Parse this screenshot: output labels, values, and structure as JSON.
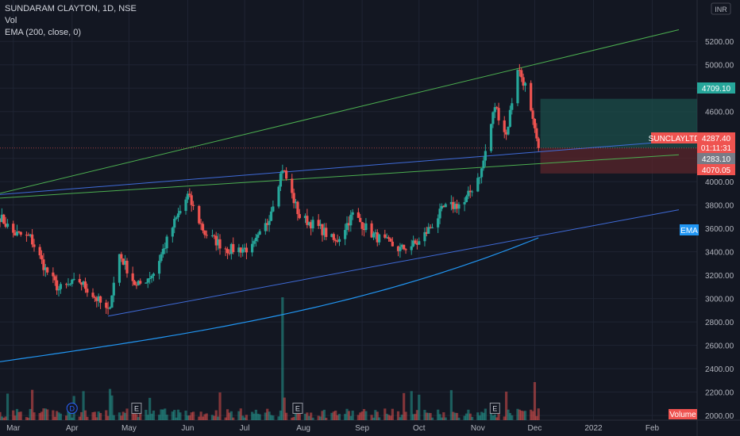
{
  "legend": {
    "symbol": "SUNDARAM CLAYTON, 1D, NSE",
    "volume": "Vol",
    "ema": "EMA (200, close, 0)"
  },
  "currency": "INR",
  "chart_data": {
    "type": "candlestick",
    "symbol": "SUNDARAM CLAYTON",
    "interval": "1D",
    "exchange": "NSE",
    "ylim": [
      1960,
      5500
    ],
    "y_ticks": [
      2000,
      2200,
      2400,
      2600,
      2800,
      3000,
      3200,
      3400,
      3600,
      3800,
      4000,
      4200,
      4400,
      4600,
      4800,
      5000,
      5200
    ],
    "y_tick_labels": [
      "2000.00",
      "2200.00",
      "2400.00",
      "2600.00",
      "2800.00",
      "3000.00",
      "3200.00",
      "3400.00",
      "3600.00",
      "3800.00",
      "4000.00",
      "4200.00",
      "4400.00",
      "4600.00",
      "4800.00",
      "5000.00",
      "5200.00"
    ],
    "x_ticks": [
      "Mar",
      "Apr",
      "May",
      "Jun",
      "Jul",
      "Aug",
      "Sep",
      "Oct",
      "Nov",
      "Dec",
      "2022",
      "Feb"
    ],
    "price_anchors": [
      [
        "2021-02-22",
        3700
      ],
      [
        "2021-03-01",
        3560
      ],
      [
        "2021-03-10",
        3520
      ],
      [
        "2021-03-18",
        3250
      ],
      [
        "2021-03-25",
        3080
      ],
      [
        "2021-04-05",
        3150
      ],
      [
        "2021-04-15",
        2980
      ],
      [
        "2021-04-20",
        2880
      ],
      [
        "2021-04-26",
        3380
      ],
      [
        "2021-05-05",
        3100
      ],
      [
        "2021-05-14",
        3220
      ],
      [
        "2021-05-25",
        3650
      ],
      [
        "2021-06-01",
        3880
      ],
      [
        "2021-06-10",
        3560
      ],
      [
        "2021-06-22",
        3420
      ],
      [
        "2021-07-05",
        3430
      ],
      [
        "2021-07-13",
        3650
      ],
      [
        "2021-07-21",
        4120
      ],
      [
        "2021-07-30",
        3700
      ],
      [
        "2021-08-10",
        3600
      ],
      [
        "2021-08-18",
        3480
      ],
      [
        "2021-08-27",
        3720
      ],
      [
        "2021-09-07",
        3540
      ],
      [
        "2021-09-21",
        3420
      ],
      [
        "2021-10-01",
        3480
      ],
      [
        "2021-10-14",
        3770
      ],
      [
        "2021-10-25",
        3820
      ],
      [
        "2021-11-03",
        4100
      ],
      [
        "2021-11-10",
        4650
      ],
      [
        "2021-11-16",
        4400
      ],
      [
        "2021-11-22",
        4980
      ],
      [
        "2021-11-26",
        4820
      ],
      [
        "2021-12-01",
        4420
      ],
      [
        "2021-12-03",
        4287.4
      ]
    ],
    "ema": {
      "name": "EMA (200, close, 0)",
      "start": 2460,
      "end": 3520
    },
    "volume_highlights": [
      {
        "date": "2021-07-21",
        "bar": "spike"
      },
      {
        "date": "2021-12-01",
        "bar": "spike"
      }
    ],
    "trendlines": [
      {
        "color": "#4caf50",
        "from": [
          "2021-02-22",
          3900
        ],
        "to": [
          "2022-02-15",
          5300
        ]
      },
      {
        "color": "#4caf50",
        "from": [
          "2021-02-22",
          3860
        ],
        "to": [
          "2022-02-15",
          4230
        ]
      },
      {
        "color": "#3f6bd8",
        "from": [
          "2021-02-22",
          3890
        ],
        "to": [
          "2022-02-15",
          4350
        ]
      },
      {
        "color": "#3f6bd8",
        "from": [
          "2021-04-20",
          2850
        ],
        "to": [
          "2022-02-15",
          3760
        ]
      }
    ],
    "position": {
      "entry": 4287.4,
      "target": 4709.1,
      "stop": 4070.05
    },
    "events": [
      {
        "label": "D",
        "date": "2021-04-01"
      },
      {
        "label": "E",
        "date": "2021-05-05"
      },
      {
        "label": "E",
        "date": "2021-07-29"
      },
      {
        "label": "E",
        "date": "2021-11-10"
      }
    ],
    "grid": true,
    "legend_position": "top-left"
  },
  "price_labels": {
    "target": "4709.10",
    "symbol_tag": "SUNCLAYLTD",
    "last": "4287.40",
    "countdown": "01:11:31",
    "current": "4283.10",
    "stop": "4070.05",
    "ema_tag": "EMA",
    "volume_tag": "Volume"
  },
  "colors": {
    "bg": "#131722",
    "up": "#26a69a",
    "down": "#ef5350",
    "grid": "#1f2433",
    "ema": "#2196f3",
    "target_zone": "#1b4d4a",
    "stop_zone": "#5a262b"
  }
}
